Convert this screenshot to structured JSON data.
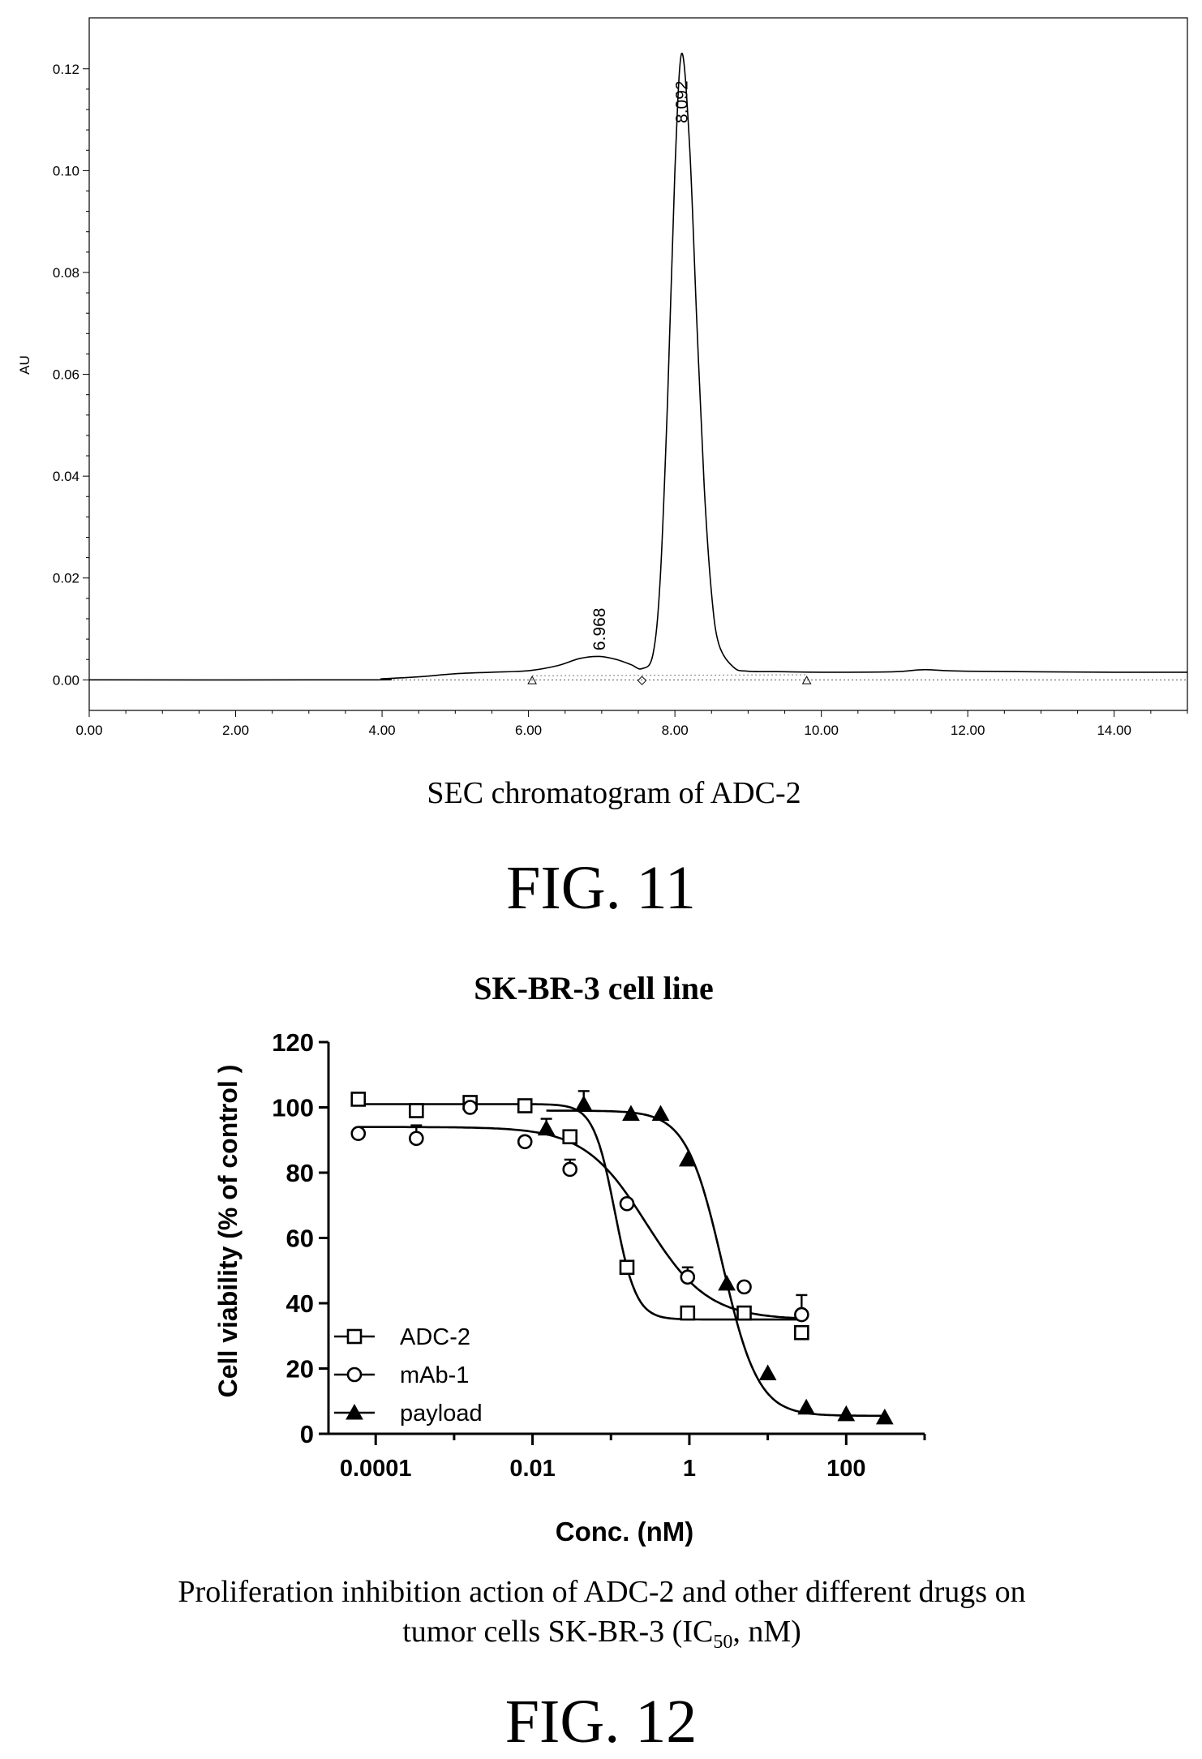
{
  "chart_data": [
    {
      "type": "line",
      "ylabel": "AU",
      "xlabel": "",
      "caption": "SEC chromatogram of ADC-2",
      "figure_label": "FIG. 11",
      "xlim": [
        0,
        15
      ],
      "ylim": [
        -0.006,
        0.13
      ],
      "x_ticks": [
        "0.00",
        "2.00",
        "4.00",
        "6.00",
        "8.00",
        "10.00",
        "12.00",
        "14.00"
      ],
      "x_tick_values": [
        0,
        2,
        4,
        6,
        8,
        10,
        12,
        14
      ],
      "y_ticks": [
        "0.00",
        "0.02",
        "0.04",
        "0.06",
        "0.08",
        "0.10",
        "0.12"
      ],
      "y_tick_values": [
        0,
        0.02,
        0.04,
        0.06,
        0.08,
        0.1,
        0.12
      ],
      "peaks": [
        {
          "rt": 6.968,
          "label": "6.968",
          "height": 0.0045
        },
        {
          "rt": 8.092,
          "label": "8.092",
          "height": 0.123
        }
      ],
      "trace": {
        "x": [
          0,
          3.8,
          4.0,
          4.5,
          5.0,
          5.5,
          6.0,
          6.4,
          6.7,
          6.968,
          7.2,
          7.4,
          7.55,
          7.7,
          7.8,
          7.9,
          8.0,
          8.092,
          8.2,
          8.3,
          8.4,
          8.5,
          8.6,
          8.8,
          9.0,
          9.5,
          10.0,
          11.0,
          11.4,
          12.0,
          14.0,
          15.0
        ],
        "y": [
          0,
          0,
          0.0002,
          0.0006,
          0.0012,
          0.0015,
          0.0018,
          0.0028,
          0.0042,
          0.0046,
          0.004,
          0.003,
          0.0022,
          0.005,
          0.02,
          0.055,
          0.1,
          0.123,
          0.105,
          0.07,
          0.038,
          0.017,
          0.007,
          0.0025,
          0.0017,
          0.0016,
          0.0015,
          0.0016,
          0.002,
          0.0017,
          0.0015,
          0.0015
        ]
      },
      "baseline_markers": [
        {
          "x": 6.05,
          "shape": "triangle"
        },
        {
          "x": 7.55,
          "shape": "diamond"
        },
        {
          "x": 9.8,
          "shape": "triangle"
        }
      ]
    },
    {
      "type": "scatter",
      "title": "SK-BR-3 cell line",
      "ylabel": "Cell viability (% of control )",
      "xlabel": "Conc. (nM)",
      "x_scale": "log",
      "xlim": [
        2.5e-05,
        1000
      ],
      "ylim": [
        0,
        120
      ],
      "x_ticks": [
        "0.0001",
        "0.01",
        "1",
        "100"
      ],
      "x_tick_values": [
        0.0001,
        0.01,
        1,
        100
      ],
      "y_ticks": [
        "0",
        "20",
        "40",
        "60",
        "80",
        "100",
        "120"
      ],
      "y_tick_values": [
        0,
        20,
        40,
        60,
        80,
        100,
        120
      ],
      "legend_position": "bottom-left",
      "series": [
        {
          "name": "ADC-2",
          "marker": "open-square",
          "x": [
            6e-05,
            0.00033,
            0.0016,
            0.008,
            0.03,
            0.16,
            0.95,
            5.0,
            27
          ],
          "y": [
            102.5,
            99,
            101.5,
            100.5,
            91,
            51,
            37,
            37,
            31
          ],
          "err": [
            0,
            0,
            0,
            0,
            2,
            0,
            0,
            0,
            2
          ],
          "fit": {
            "top": 101,
            "bottom": 35,
            "logec50": -0.95,
            "hill": 3.2
          }
        },
        {
          "name": "mAb-1",
          "marker": "open-circle",
          "x": [
            6e-05,
            0.00033,
            0.0016,
            0.008,
            0.03,
            0.16,
            0.95,
            5.0,
            27
          ],
          "y": [
            92,
            90.5,
            100,
            89.5,
            81,
            70.5,
            48,
            45,
            36.5
          ],
          "err": [
            0,
            4,
            0,
            0,
            3,
            0,
            3,
            0,
            6
          ],
          "fit": {
            "top": 94,
            "bottom": 35,
            "logec50": -0.55,
            "hill": 1.1
          }
        },
        {
          "name": "payload",
          "marker": "filled-triangle",
          "x": [
            0.015,
            0.045,
            0.18,
            0.43,
            0.95,
            3.0,
            10,
            31,
            100,
            310
          ],
          "y": [
            93.5,
            101,
            98,
            98,
            84,
            46,
            18.5,
            8,
            6,
            5
          ],
          "err": [
            3,
            4,
            0,
            0,
            0,
            0,
            0,
            0,
            0,
            0
          ],
          "fit": {
            "top": 99,
            "bottom": 5.5,
            "logec50": 0.42,
            "hill": 1.9
          }
        }
      ],
      "caption_line1": "Proliferation inhibition action of ADC-2 and other different drugs on",
      "caption_line2_pre": "tumor cells SK-BR-3 (IC",
      "caption_line2_sub": "50",
      "caption_line2_post": ", nM)",
      "figure_label": "FIG. 12"
    }
  ]
}
